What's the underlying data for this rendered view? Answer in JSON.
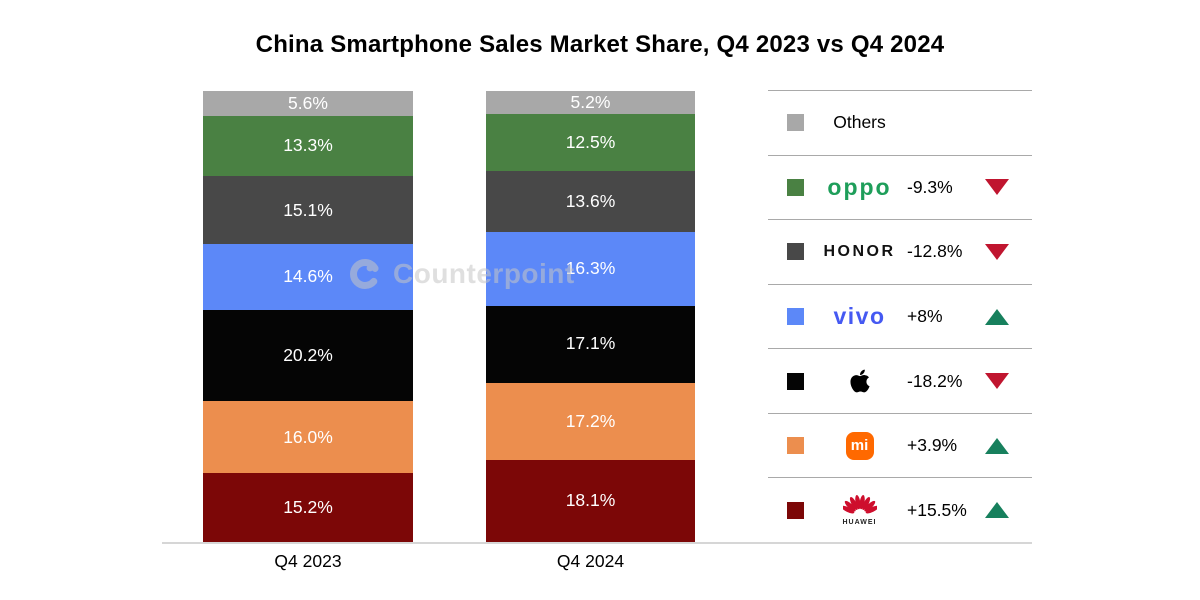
{
  "title": "China Smartphone Sales Market Share, Q4 2023 vs Q4 2024",
  "watermark": {
    "text": "Counterpoint"
  },
  "chart_data": {
    "type": "bar",
    "variant": "100%-stacked-column",
    "title": "China Smartphone Sales Market Share, Q4 2023 vs Q4 2024",
    "categories": [
      "Q4 2023",
      "Q4 2024"
    ],
    "unit": "%",
    "stack_order": "top-to-bottom",
    "series": [
      {
        "name": "Others",
        "color": "#a8a8a8",
        "values": [
          "5.6",
          "5.2"
        ]
      },
      {
        "name": "OPPO",
        "color": "#4a8143",
        "values": [
          "13.3",
          "12.5"
        ]
      },
      {
        "name": "HONOR",
        "color": "#484848",
        "values": [
          "15.1",
          "13.6"
        ]
      },
      {
        "name": "vivo",
        "color": "#5c88f8",
        "values": [
          "14.6",
          "16.3"
        ]
      },
      {
        "name": "Apple",
        "color": "#050505",
        "values": [
          "20.2",
          "17.1"
        ]
      },
      {
        "name": "Xiaomi",
        "color": "#ec8e4e",
        "values": [
          "16.0",
          "17.2"
        ]
      },
      {
        "name": "HUAWEI",
        "color": "#7c0707",
        "values": [
          "15.2",
          "18.1"
        ]
      }
    ],
    "ylim": [
      0,
      100
    ],
    "grid": false,
    "legend_position": "right"
  },
  "legend": {
    "rows": [
      {
        "brand": "Others",
        "swatch": "#a8a8a8",
        "label_text": "Others",
        "change": "",
        "direction": "none"
      },
      {
        "brand": "OPPO",
        "swatch": "#4a8143",
        "logo_text": "oppo",
        "logo_color": "#1e9e5a",
        "change": "-9.3%",
        "direction": "down"
      },
      {
        "brand": "HONOR",
        "swatch": "#484848",
        "logo_text": "HONOR",
        "logo_color": "#111111",
        "change": "-12.8%",
        "direction": "down"
      },
      {
        "brand": "vivo",
        "swatch": "#5c88f8",
        "logo_text": "vivo",
        "logo_color": "#4559f2",
        "change": "+8%",
        "direction": "up"
      },
      {
        "brand": "Apple",
        "swatch": "#050505",
        "logo_icon": "apple-logo",
        "logo_color": "#000000",
        "change": "-18.2%",
        "direction": "down"
      },
      {
        "brand": "Xiaomi",
        "swatch": "#ec8e4e",
        "logo_icon": "xiaomi-logo",
        "logo_text": "mi",
        "logo_color": "#ff6900",
        "change": "+3.9%",
        "direction": "up"
      },
      {
        "brand": "HUAWEI",
        "swatch": "#7c0707",
        "logo_icon": "huawei-logo",
        "logo_text": "HUAWEI",
        "logo_color": "#ce0e2d",
        "change": "+15.5%",
        "direction": "up"
      }
    ],
    "trend_colors": {
      "up": "#17805d",
      "down": "#c0152f"
    }
  },
  "x_axis": {
    "labels": [
      "Q4 2023",
      "Q4 2024"
    ]
  }
}
